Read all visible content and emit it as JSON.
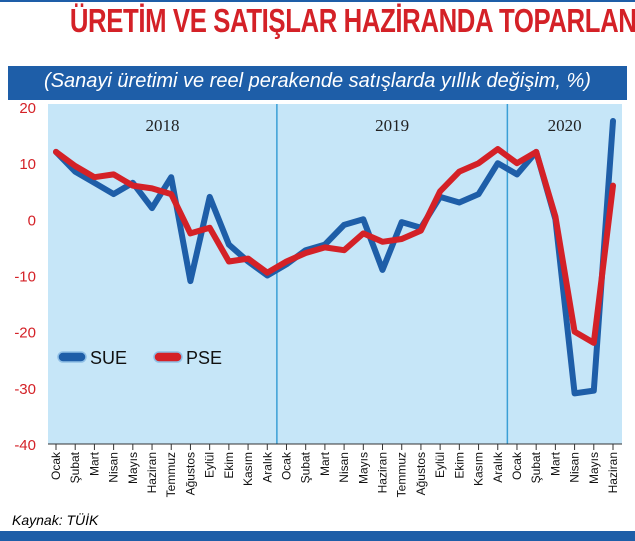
{
  "title": "ÜRETİM VE SATIŞLAR HAZİRANDA TOPARLANDI",
  "subtitle": "(Sanayi üretimi ve reel perakende satışlarda yıllık değişim, %)",
  "source": "Kaynak: TÜİK",
  "colors": {
    "title": "#d42127",
    "band": "#1e5ea8",
    "plot_bg": "#c6e6f8",
    "sue": "#1e5ea8",
    "pse": "#d42127",
    "tick_text": "#d42127"
  },
  "chart_data": {
    "type": "line",
    "title": "ÜRETİM VE SATIŞLAR HAZİRANDA TOPARLANDI",
    "ylim": [
      -40,
      20
    ],
    "yticks": [
      20,
      10,
      0,
      -10,
      -20,
      -30,
      -40
    ],
    "year_labels": [
      "2018",
      "2019",
      "2020"
    ],
    "categories": [
      "Ocak",
      "Şubat",
      "Mart",
      "Nisan",
      "Mayıs",
      "Haziran",
      "Temmuz",
      "Ağustos",
      "Eylül",
      "Ekim",
      "Kasım",
      "Aralık",
      "Ocak",
      "Şubat",
      "Mart",
      "Nisan",
      "Mayıs",
      "Haziran",
      "Temmuz",
      "Ağustos",
      "Eylül",
      "Ekim",
      "Kasım",
      "Aralık",
      "Ocak",
      "Şubat",
      "Mart",
      "Nisan",
      "Mayıs",
      "Haziran"
    ],
    "series": [
      {
        "name": "SUE",
        "values": [
          12,
          8.5,
          6.5,
          4.5,
          6.5,
          2,
          7.5,
          -11,
          4,
          -4.5,
          -7.5,
          -10,
          -8,
          -5.5,
          -4.5,
          -1,
          0,
          -9,
          -0.5,
          -1.5,
          4,
          3,
          4.5,
          10,
          8,
          12,
          0,
          -31,
          -30.5,
          17.5
        ]
      },
      {
        "name": "PSE",
        "values": [
          12,
          9.5,
          7.5,
          8,
          6,
          5.5,
          4.5,
          -2.5,
          -1.5,
          -7.5,
          -7,
          -9.5,
          -7.5,
          -6,
          -5,
          -5.5,
          -2.5,
          -4,
          -3.5,
          -2,
          5,
          8.5,
          10,
          12.5,
          10,
          12,
          0.5,
          -20,
          -22,
          6
        ]
      }
    ],
    "legend": "left-lower",
    "grid": false
  }
}
